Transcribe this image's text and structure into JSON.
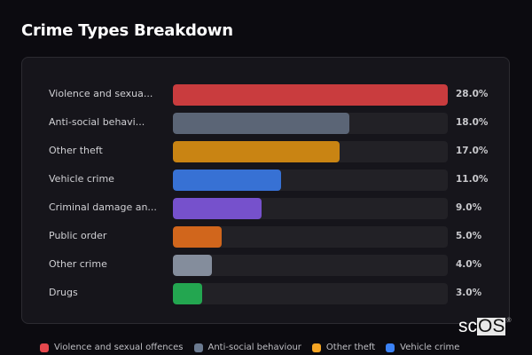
{
  "title": "Crime Types Breakdown",
  "rows": [
    {
      "label": "Violence and sexua...",
      "value": "28.0%",
      "color": "#c93c3e",
      "width": "100%"
    },
    {
      "label": "Anti-social behavi...",
      "value": "18.0%",
      "color": "#5b6576",
      "width": "64.3%"
    },
    {
      "label": "Other theft",
      "value": "17.0%",
      "color": "#c98413",
      "width": "60.7%"
    },
    {
      "label": "Vehicle crime",
      "value": "11.0%",
      "color": "#3771d4",
      "width": "39.3%"
    },
    {
      "label": "Criminal damage an...",
      "value": "9.0%",
      "color": "#7651cc",
      "width": "32.1%"
    },
    {
      "label": "Public order",
      "value": "5.0%",
      "color": "#d1661c",
      "width": "17.9%"
    },
    {
      "label": "Other crime",
      "value": "4.0%",
      "color": "#848d9c",
      "width": "14.3%"
    },
    {
      "label": "Drugs",
      "value": "3.0%",
      "color": "#23a650",
      "width": "10.7%"
    }
  ],
  "legend": [
    {
      "label": "Violence and sexual offences",
      "color": "#e5484d"
    },
    {
      "label": "Anti-social behaviour",
      "color": "#6b7a90"
    },
    {
      "label": "Other theft",
      "color": "#f5a524"
    },
    {
      "label": "Vehicle crime",
      "color": "#3b82f6"
    }
  ],
  "watermark": {
    "prefix": "sc",
    "boxed": "OS",
    "mark": "®"
  },
  "chart_data": {
    "type": "bar",
    "orientation": "horizontal",
    "title": "Crime Types Breakdown",
    "categories": [
      "Violence and sexual offences",
      "Anti-social behaviour",
      "Other theft",
      "Vehicle crime",
      "Criminal damage and arson",
      "Public order",
      "Other crime",
      "Drugs"
    ],
    "category_labels_shown": [
      "Violence and sexua...",
      "Anti-social behavi...",
      "Other theft",
      "Vehicle crime",
      "Criminal damage an...",
      "Public order",
      "Other crime",
      "Drugs"
    ],
    "values": [
      28.0,
      18.0,
      17.0,
      11.0,
      9.0,
      5.0,
      4.0,
      3.0
    ],
    "value_labels": [
      "28.0%",
      "18.0%",
      "17.0%",
      "11.0%",
      "9.0%",
      "5.0%",
      "4.0%",
      "3.0%"
    ],
    "colors": [
      "#c93c3e",
      "#5b6576",
      "#c98413",
      "#3771d4",
      "#7651cc",
      "#d1661c",
      "#848d9c",
      "#23a650"
    ],
    "xlabel": "",
    "ylabel": "",
    "xlim": [
      0,
      28
    ],
    "grid": false,
    "legend_position": "bottom",
    "legend_entries_visible": [
      "Violence and sexual offences",
      "Anti-social behaviour",
      "Other theft",
      "Vehicle crime"
    ]
  }
}
